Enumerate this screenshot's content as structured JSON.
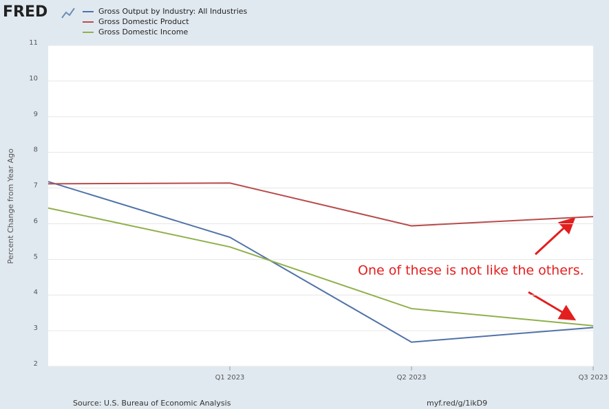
{
  "logo": "FRED",
  "chart_data": {
    "type": "line",
    "y_label": "Percent Change from Year Ago",
    "categories": [
      null,
      "Q1 2023",
      "Q2 2023",
      "Q3 2023"
    ],
    "series": [
      {
        "name": "Gross Output by Industry: All Industries",
        "color": "#4f72a8",
        "values": [
          7.18,
          5.62,
          2.68,
          3.09
        ]
      },
      {
        "name": "Gross Domestic Product",
        "color": "#b84b4b",
        "values": [
          7.12,
          7.14,
          5.94,
          6.2
        ]
      },
      {
        "name": "Gross Domestic Income",
        "color": "#8fb04a",
        "values": [
          6.44,
          5.35,
          3.62,
          3.14
        ]
      }
    ],
    "ylim": [
      2,
      11
    ],
    "yticks": [
      2,
      3,
      4,
      5,
      6,
      7,
      8,
      9,
      10,
      11
    ],
    "grid": true,
    "annotation": "One of these is not like the others.",
    "source": "Source: U.S. Bureau of Economic Analysis",
    "link": "myf.red/g/1ikD9"
  }
}
